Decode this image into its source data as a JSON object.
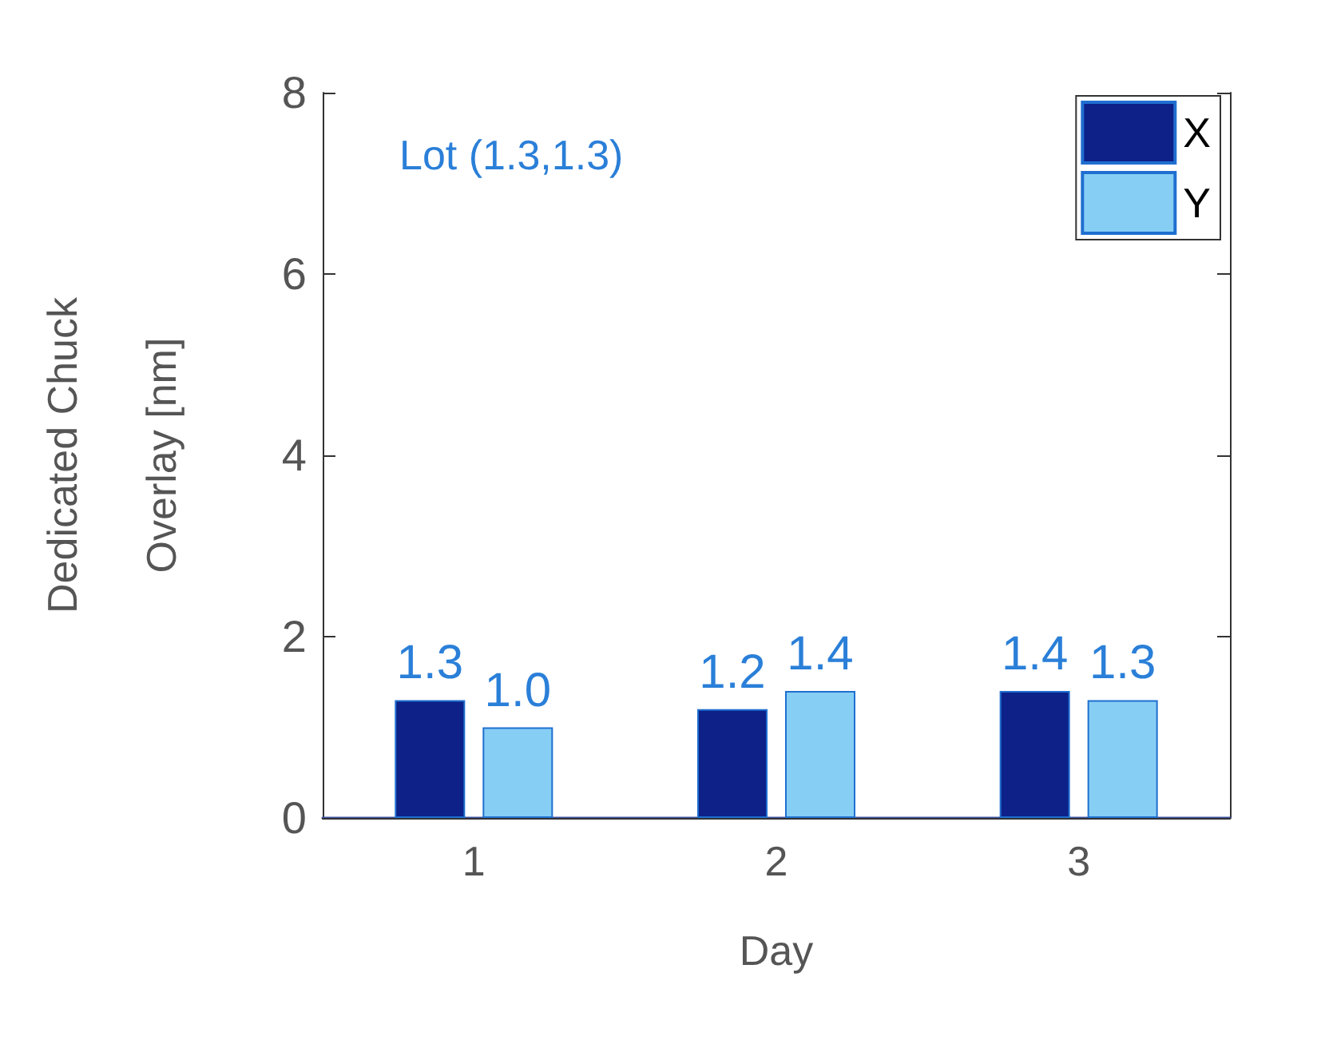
{
  "chart_data": {
    "type": "bar",
    "xlabel": "Day",
    "ylabel": "Dedicated Chuck\nOverlay [nm]",
    "annotations": [
      "Lot (1.3,1.3)"
    ],
    "categories": [
      "1",
      "2",
      "3"
    ],
    "series": [
      {
        "name": "X",
        "color": "#0d2189",
        "values": [
          1.3,
          1.2,
          1.4
        ],
        "value_labels": [
          "1.3",
          "1.2",
          "1.4"
        ]
      },
      {
        "name": "Y",
        "color": "#87cef5",
        "values": [
          1.0,
          1.4,
          1.3
        ],
        "value_labels": [
          "1.0",
          "1.4",
          "1.3"
        ]
      }
    ],
    "ylim": [
      0,
      8
    ],
    "yticks": [
      0,
      2,
      4,
      6,
      8
    ],
    "grid": false,
    "legend": "top right"
  }
}
